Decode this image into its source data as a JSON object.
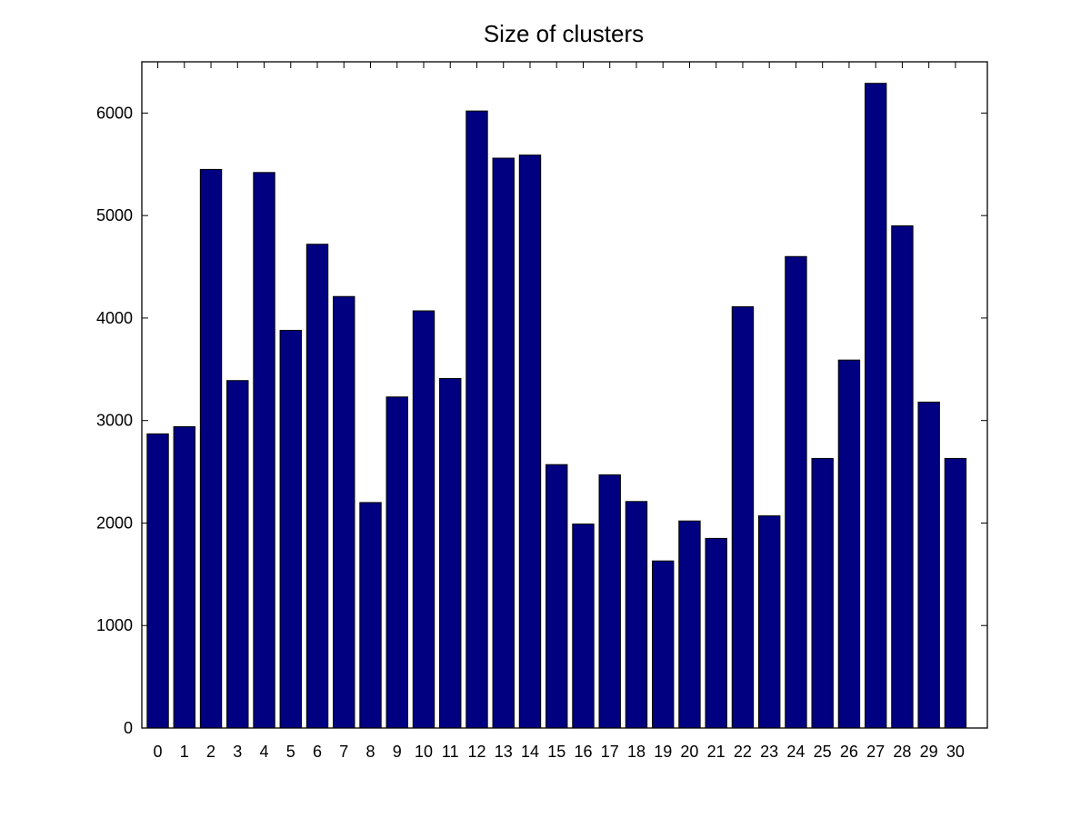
{
  "chart_data": {
    "type": "bar",
    "title": "Size of clusters",
    "xlabel": "",
    "ylabel": "",
    "categories": [
      "0",
      "1",
      "2",
      "3",
      "4",
      "5",
      "6",
      "7",
      "8",
      "9",
      "10",
      "11",
      "12",
      "13",
      "14",
      "15",
      "16",
      "17",
      "18",
      "19",
      "20",
      "21",
      "22",
      "23",
      "24",
      "25",
      "26",
      "27",
      "28",
      "29",
      "30"
    ],
    "values": [
      2870,
      2940,
      5450,
      3390,
      5420,
      3880,
      4720,
      4210,
      2200,
      3230,
      4070,
      3410,
      6020,
      5560,
      5590,
      2570,
      1990,
      2470,
      2210,
      1630,
      2020,
      1850,
      4110,
      2070,
      4600,
      2630,
      3590,
      6290,
      4900,
      3180,
      2630
    ],
    "ylim": [
      0,
      6500
    ],
    "yticks": [
      0,
      1000,
      2000,
      3000,
      4000,
      5000,
      6000
    ],
    "xlim": [
      -0.6,
      31.2
    ],
    "bar_color": "#000080",
    "grid": false,
    "legend": "none"
  }
}
